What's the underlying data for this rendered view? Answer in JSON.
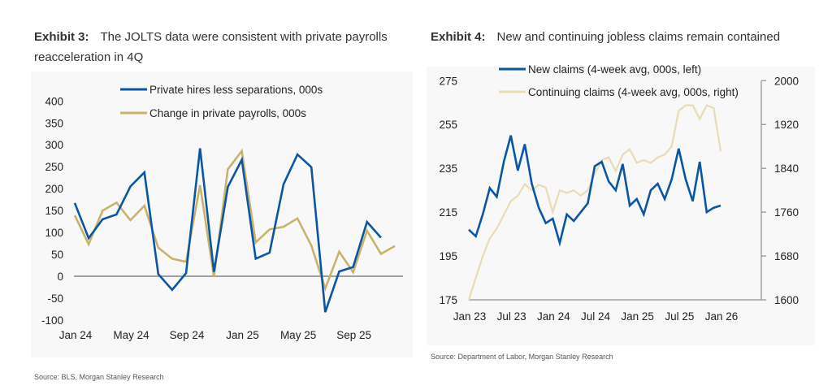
{
  "left": {
    "exhibit": "Exhibit 3:",
    "title_line1": "The JOLTS data were consistent with private payrolls",
    "title_line2": "reacceleration in 4Q",
    "source": "Source: BLS, Morgan Stanley Research"
  },
  "right": {
    "exhibit": "Exhibit 4:",
    "title": "New and continuing jobless claims remain contained",
    "source": "Source: Department of Labor, Morgan Stanley Research"
  },
  "chart_data": [
    {
      "type": "line",
      "title": "The JOLTS data were consistent with private payrolls reacceleration in 4Q",
      "x": [
        "2024-01",
        "2024-02",
        "2024-03",
        "2024-04",
        "2024-05",
        "2024-06",
        "2024-07",
        "2024-08",
        "2024-09",
        "2024-10",
        "2024-11",
        "2024-12",
        "2025-01",
        "2025-02",
        "2025-03",
        "2025-04",
        "2025-05",
        "2025-06",
        "2025-07",
        "2025-08",
        "2025-09",
        "2025-10",
        "2025-11",
        "2025-12"
      ],
      "xticks": [
        "Jan 24",
        "May 24",
        "Sep 24",
        "Jan 25",
        "May 25",
        "Sep 25"
      ],
      "yticks": [
        400,
        350,
        300,
        250,
        200,
        150,
        100,
        50,
        0,
        -50,
        -100
      ],
      "ylim": [
        -100,
        400
      ],
      "grid": false,
      "legend": "top",
      "series": [
        {
          "name": "Private hires less separations, 000s",
          "color": "#0b56a4",
          "values": [
            167,
            87,
            130,
            141,
            205,
            237,
            5,
            -31,
            7,
            292,
            10,
            204,
            266,
            40,
            54,
            210,
            278,
            249,
            -82,
            11,
            21,
            124,
            88,
            null
          ]
        },
        {
          "name": "Change in private payrolls, 000s",
          "color": "#c9b36b",
          "values": [
            139,
            73,
            150,
            168,
            128,
            161,
            65,
            40,
            33,
            208,
            -1,
            244,
            286,
            77,
            107,
            113,
            132,
            70,
            -28,
            56,
            9,
            104,
            51,
            69
          ]
        }
      ]
    },
    {
      "type": "line",
      "title": "New and continuing jobless claims remain contained",
      "x": [
        "2023-01",
        "2023-02",
        "2023-03",
        "2023-04",
        "2023-05",
        "2023-06",
        "2023-07",
        "2023-08",
        "2023-09",
        "2023-10",
        "2023-11",
        "2023-12",
        "2024-01",
        "2024-02",
        "2024-03",
        "2024-04",
        "2024-05",
        "2024-06",
        "2024-07",
        "2024-08",
        "2024-09",
        "2024-10",
        "2024-11",
        "2024-12",
        "2025-01",
        "2025-02",
        "2025-03",
        "2025-04",
        "2025-05",
        "2025-06",
        "2025-07",
        "2025-08",
        "2025-09",
        "2025-10",
        "2025-11",
        "2025-12",
        "2026-01"
      ],
      "xticks": [
        "Jan 23",
        "Jul 23",
        "Jan 24",
        "Jul 24",
        "Jan 25",
        "Jul 25",
        "Jan 26"
      ],
      "yticks_left": [
        275,
        255,
        235,
        215,
        195,
        175
      ],
      "yticks_right": [
        2000,
        1920,
        1840,
        1760,
        1680,
        1600
      ],
      "ylim_left": [
        175,
        275
      ],
      "ylim_right": [
        1600,
        2000
      ],
      "grid": false,
      "legend": "top",
      "series": [
        {
          "name": "New claims (4-week avg, 000s, left)",
          "axis": "left",
          "color": "#0b56a4",
          "values": [
            207,
            204,
            214,
            226,
            222,
            238,
            250,
            234,
            246,
            228,
            217,
            210,
            212,
            201,
            214,
            211,
            215,
            219,
            236,
            238,
            229,
            225,
            237,
            218,
            221,
            214,
            225,
            228,
            221,
            230,
            244,
            230,
            220,
            238,
            215,
            217,
            218
          ]
        },
        {
          "name": "Continuing claims (4-week avg, 000s, right)",
          "axis": "right",
          "color": "#e8dcb5",
          "values": [
            1600,
            1640,
            1680,
            1712,
            1730,
            1755,
            1780,
            1790,
            1811,
            1800,
            1810,
            1805,
            1760,
            1800,
            1795,
            1800,
            1790,
            1800,
            1830,
            1855,
            1860,
            1835,
            1865,
            1875,
            1850,
            1855,
            1850,
            1860,
            1865,
            1880,
            1945,
            1955,
            1955,
            1930,
            1955,
            1950,
            1871
          ]
        }
      ]
    }
  ]
}
